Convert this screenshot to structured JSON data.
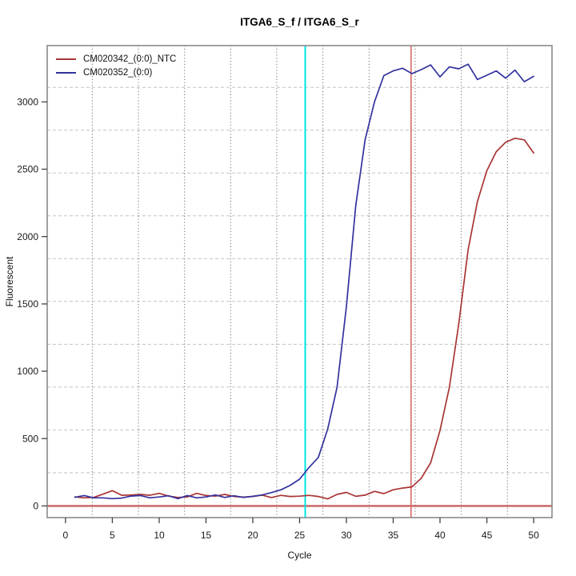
{
  "chart_data": {
    "type": "line",
    "title": "ITGA6_S_f / ITGA6_S_r",
    "xlabel": "Cycle",
    "ylabel": "Fluorescent",
    "x": [
      1,
      2,
      3,
      4,
      5,
      6,
      7,
      8,
      9,
      10,
      11,
      12,
      13,
      14,
      15,
      16,
      17,
      18,
      19,
      20,
      21,
      22,
      23,
      24,
      25,
      26,
      27,
      28,
      29,
      30,
      31,
      32,
      33,
      34,
      35,
      36,
      37,
      38,
      39,
      40,
      41,
      42,
      43,
      44,
      45,
      46,
      47,
      48,
      49,
      50
    ],
    "series": [
      {
        "name": "CM020342_(0:0)_NTC",
        "color": "#A93535",
        "values": [
          67,
          60,
          63,
          87,
          113,
          79,
          81,
          85,
          79,
          93,
          73,
          63,
          66,
          93,
          77,
          72,
          85,
          70,
          65,
          70,
          80,
          62,
          78,
          70,
          72,
          78,
          70,
          52,
          85,
          100,
          71,
          80,
          108,
          91,
          120,
          132,
          141,
          205,
          320,
          560,
          880,
          1350,
          1900,
          2260,
          2490,
          2630,
          2700,
          2730,
          2718,
          2620
        ]
      },
      {
        "name": "CM020352_(0:0)",
        "color": "#32329E",
        "values": [
          64,
          77,
          60,
          60,
          54,
          58,
          73,
          77,
          60,
          66,
          75,
          54,
          77,
          60,
          66,
          81,
          63,
          75,
          63,
          71,
          81,
          99,
          119,
          153,
          198,
          285,
          360,
          570,
          880,
          1480,
          2230,
          2720,
          3000,
          3195,
          3230,
          3250,
          3210,
          3240,
          3275,
          3186,
          3260,
          3246,
          3280,
          3166,
          3198,
          3230,
          3176,
          3236,
          3150,
          3190
        ]
      }
    ],
    "xlim": [
      -1.96,
      51.96
    ],
    "ylim": [
      -87,
      3418
    ],
    "x_ticks": [
      0,
      5,
      10,
      15,
      20,
      25,
      30,
      35,
      40,
      45,
      50
    ],
    "y_ticks": [
      0,
      500,
      1000,
      1500,
      2000,
      2500,
      3000
    ],
    "grid": {
      "vertical_x": [
        2.85,
        7.78,
        12.71,
        17.63,
        22.56,
        27.49,
        32.42,
        37.35,
        42.27,
        47.2
      ],
      "vertical_color": "#6E6E6E",
      "horizontal_y": [
        246,
        564,
        882,
        1200,
        1518,
        1836,
        2154,
        2472,
        2790,
        3108
      ],
      "horizontal_color": "#C3C3C3"
    },
    "reference_lines": {
      "vertical": [
        {
          "name": "threshold-line-cyan",
          "x": 25.6,
          "color": "#00E5E5",
          "width": 2
        },
        {
          "name": "threshold-line-red",
          "x": 36.9,
          "color": "#D96A6A",
          "width": 1.6
        }
      ],
      "horizontal": [
        {
          "name": "zero-baseline",
          "y": 0,
          "color": "#C96060",
          "width": 2.4
        }
      ]
    },
    "legend": {
      "position": "top-left"
    }
  }
}
